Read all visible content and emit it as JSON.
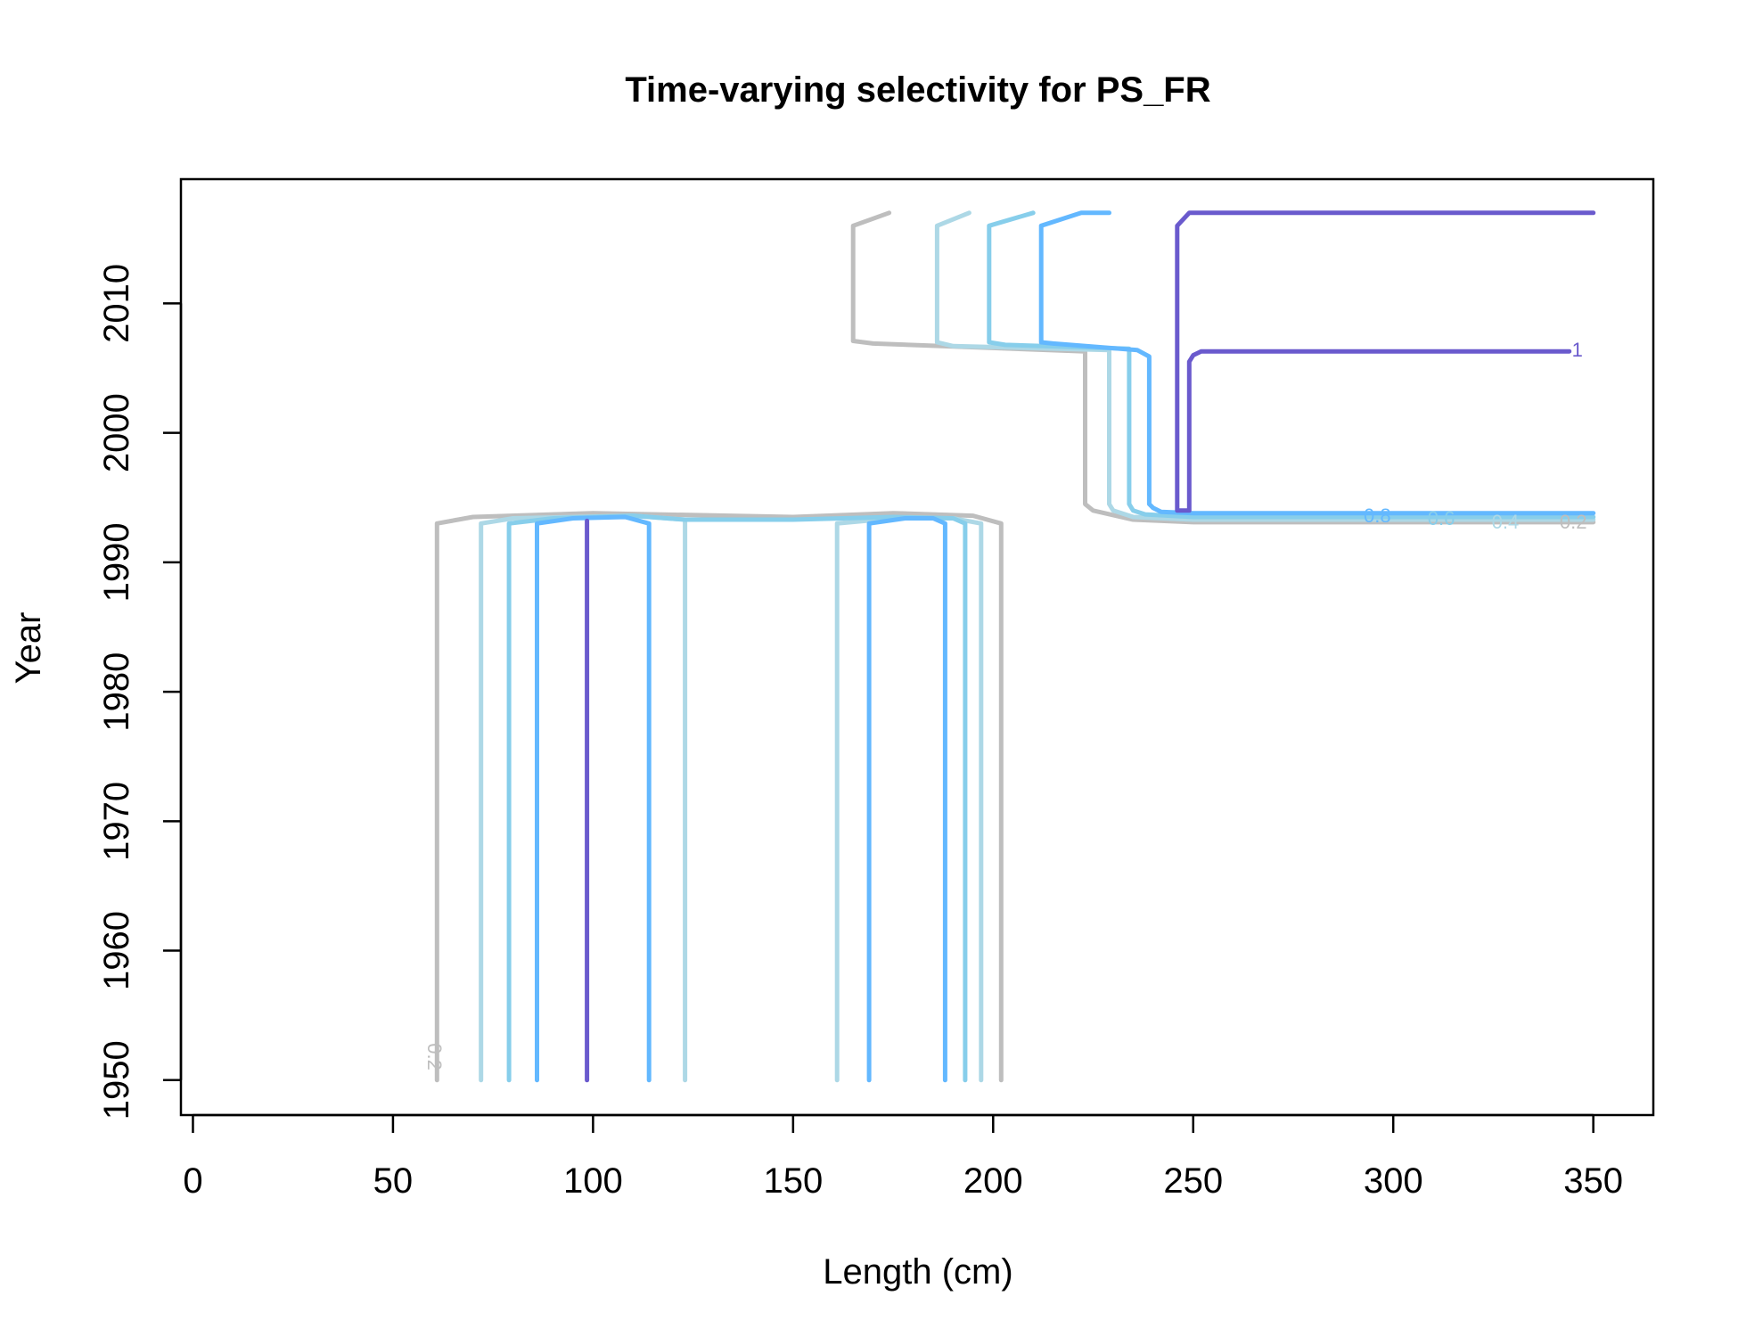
{
  "chart_data": {
    "type": "line",
    "chart_kind": "contour",
    "title": "Time-varying selectivity for PS_FR",
    "xlabel": "Length (cm)",
    "ylabel": "Year",
    "xlim": [
      -3,
      365
    ],
    "ylim": [
      1947.3,
      2019.6
    ],
    "x_ticks": [
      0,
      50,
      100,
      150,
      200,
      250,
      300,
      350
    ],
    "y_ticks": [
      1950,
      1960,
      1970,
      1980,
      1990,
      2000,
      2010
    ],
    "grid": false,
    "legend": "none",
    "levels": [
      {
        "level": 0.2,
        "label": "0.2",
        "color": "#BEBEBE"
      },
      {
        "level": 0.4,
        "label": "0.4",
        "color": "#ADD8E6"
      },
      {
        "level": 0.6,
        "label": "0.6",
        "color": "#87CEEB"
      },
      {
        "level": 0.8,
        "label": "0.8",
        "color": "#63B8FF"
      },
      {
        "level": 1.0,
        "label": "1",
        "color": "#6A5ACD"
      }
    ],
    "series": [
      {
        "level": "0.2",
        "segments": [
          [
            [
              61,
              1950
            ],
            [
              61,
              1993
            ],
            [
              70,
              1993.5
            ],
            [
              100,
              1993.8
            ],
            [
              150,
              1993.5
            ],
            [
              175,
              1993.8
            ],
            [
              195,
              1993.6
            ],
            [
              202,
              1993
            ],
            [
              202,
              1950
            ]
          ],
          [
            [
              350,
              1993.1
            ],
            [
              250,
              1993.1
            ],
            [
              235,
              1993.3
            ],
            [
              225,
              1994
            ],
            [
              223,
              1994.5
            ],
            [
              223,
              2006.3
            ],
            [
              170,
              2006.9
            ],
            [
              165,
              2007.1
            ],
            [
              165,
              2016
            ],
            [
              174,
              2017
            ]
          ]
        ]
      },
      {
        "level": "0.4",
        "segments": [
          [
            [
              72,
              1950
            ],
            [
              72,
              1993
            ],
            [
              80,
              1993.4
            ],
            [
              110,
              1993.6
            ],
            [
              123,
              1993.3
            ],
            [
              123,
              1950
            ]
          ],
          [
            [
              161,
              1950
            ],
            [
              161,
              1993
            ],
            [
              175,
              1993.4
            ],
            [
              190,
              1993.4
            ],
            [
              197,
              1993
            ],
            [
              197,
              1950
            ]
          ],
          [
            [
              350,
              1993.3
            ],
            [
              250,
              1993.3
            ],
            [
              235,
              1993.5
            ],
            [
              230,
              1994
            ],
            [
              229,
              1994.5
            ],
            [
              229,
              2006.4
            ],
            [
              190,
              2006.7
            ],
            [
              186,
              2007
            ],
            [
              186,
              2016
            ],
            [
              194,
              2017
            ]
          ]
        ]
      },
      {
        "level": "0.6",
        "segments": [
          [
            [
              79,
              1950
            ],
            [
              79,
              1993
            ],
            [
              90,
              1993.4
            ],
            [
              110,
              1993.6
            ],
            [
              123,
              1993.3
            ],
            [
              150,
              1993.3
            ],
            [
              175,
              1993.5
            ],
            [
              190,
              1993.4
            ],
            [
              193,
              1993
            ],
            [
              193,
              1950
            ]
          ],
          [
            [
              350,
              1993.5
            ],
            [
              250,
              1993.5
            ],
            [
              238,
              1993.7
            ],
            [
              235,
              1994
            ],
            [
              234,
              1994.5
            ],
            [
              234,
              2006.5
            ],
            [
              203,
              2006.8
            ],
            [
              199,
              2007
            ],
            [
              199,
              2016
            ],
            [
              210,
              2017
            ]
          ]
        ]
      },
      {
        "level": "0.8",
        "segments": [
          [
            [
              86,
              1950
            ],
            [
              86,
              1993
            ],
            [
              95,
              1993.4
            ],
            [
              108,
              1993.5
            ],
            [
              114,
              1993
            ],
            [
              114,
              1950
            ]
          ],
          [
            [
              169,
              1950
            ],
            [
              169,
              1993
            ],
            [
              178,
              1993.4
            ],
            [
              185,
              1993.4
            ],
            [
              188,
              1993
            ],
            [
              188,
              1950
            ]
          ],
          [
            [
              350,
              1993.8
            ],
            [
              250,
              1993.8
            ],
            [
              242,
              1993.9
            ],
            [
              240,
              1994.2
            ],
            [
              239,
              1994.5
            ],
            [
              239,
              2005.9
            ],
            [
              236,
              2006.4
            ],
            [
              215,
              2006.9
            ],
            [
              212,
              2007
            ],
            [
              212,
              2016
            ],
            [
              222,
              2017
            ],
            [
              229,
              2017
            ]
          ]
        ]
      },
      {
        "level": "1",
        "segments": [
          [
            [
              98.5,
              1950
            ],
            [
              98.5,
              1993.2
            ]
          ],
          [
            [
              344,
              2006.3
            ],
            [
              252,
              2006.3
            ],
            [
              250,
              2006
            ],
            [
              249,
              2005.5
            ],
            [
              249,
              1994
            ],
            [
              246,
              1994
            ],
            [
              246,
              2016
            ],
            [
              249,
              2017
            ],
            [
              350,
              2017
            ]
          ]
        ]
      }
    ],
    "labels": [
      {
        "text": "0.2",
        "at": [
          60,
          1951.8
        ],
        "color": "#BEBEBE",
        "rotate": 90
      },
      {
        "text": "0.2",
        "at": [
          345,
          1993
        ],
        "color": "#BEBEBE",
        "rotate": 0
      },
      {
        "text": "0.4",
        "at": [
          328,
          1993
        ],
        "color": "#ADD8E6",
        "rotate": 0
      },
      {
        "text": "0.6",
        "at": [
          312,
          1993.3
        ],
        "color": "#87CEEB",
        "rotate": 0
      },
      {
        "text": "0.8",
        "at": [
          296,
          1993.5
        ],
        "color": "#63B8FF",
        "rotate": 0
      },
      {
        "text": "1",
        "at": [
          346,
          2006.3
        ],
        "color": "#6A5ACD",
        "rotate": 0
      }
    ]
  }
}
